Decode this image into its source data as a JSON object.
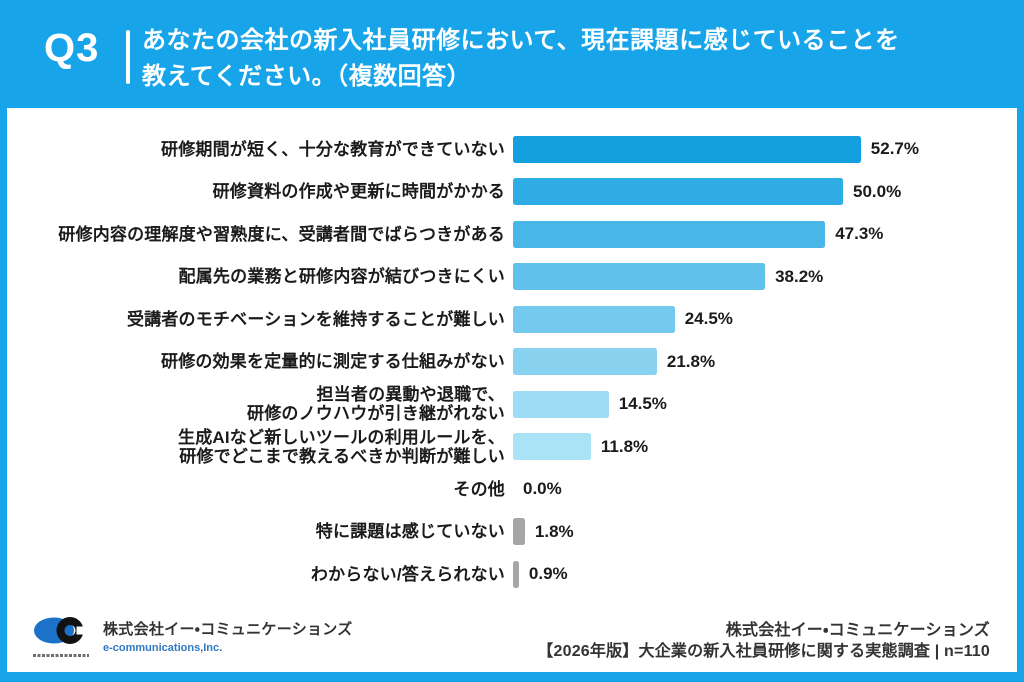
{
  "header": {
    "question_number": "Q3",
    "question_line1": "あなたの会社の新入社員研修において、現在課題に感じていることを",
    "question_line2": "教えてください。（複数回答）"
  },
  "chart_data": {
    "type": "bar",
    "orientation": "horizontal",
    "value_unit": "%",
    "xlim": [
      0,
      60
    ],
    "grid": false,
    "legend": false,
    "categories": [
      "研修期間が短く、十分な教育ができていない",
      "研修資料の作成や更新に時間がかかる",
      "研修内容の理解度や習熟度に、受講者間でばらつきがある",
      "配属先の業務と研修内容が結びつきにくい",
      "受講者のモチベーションを維持することが難しい",
      "研修の効果を定量的に測定する仕組みがない",
      "担当者の異動や退職で、\n研修のノウハウが引き継がれない",
      "生成AIなど新しいツールの利用ルールを、\n研修でどこまで教えるべきか判断が難しい",
      "その他",
      "特に課題は感じていない",
      "わからない/答えられない"
    ],
    "values": [
      52.7,
      50.0,
      47.3,
      38.2,
      24.5,
      21.8,
      14.5,
      11.8,
      0.0,
      1.8,
      0.9
    ],
    "value_labels": [
      "52.7%",
      "50.0%",
      "47.3%",
      "38.2%",
      "24.5%",
      "21.8%",
      "14.5%",
      "11.8%",
      "0.0%",
      "1.8%",
      "0.9%"
    ],
    "bar_colors": [
      "#14A0DE",
      "#2FACE3",
      "#49B6E8",
      "#60C1EB",
      "#73CAEE",
      "#89D3F1",
      "#9CDCF4",
      "#ABE3F6",
      "#A6A6A6",
      "#A6A6A6",
      "#A6A6A6"
    ]
  },
  "colors": {
    "frame_blue": "#17A4E8",
    "panel_bg": "#FFFFFF",
    "text_dark": "#1B1B1B",
    "gray_bar": "#A6A6A6",
    "logo_blue": "#1C72C8",
    "footer_en_blue": "#2E79C2"
  },
  "footer": {
    "left": {
      "company_ja": "株式会社イー・コミュニケーションズ",
      "company_en": "e-communications,Inc."
    },
    "right": {
      "line1": "株式会社イー・コミュニケーションズ",
      "line2": "【2026年版】大企業の新入社員研修に関する実態調査 | n=110"
    }
  }
}
